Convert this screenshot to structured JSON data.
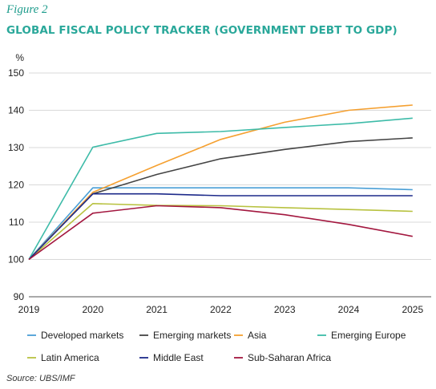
{
  "figure_label": "Figure 2",
  "source": "Source: UBS/IMF",
  "chart_data": {
    "type": "line",
    "title": "GLOBAL FISCAL POLICY TRACKER (GOVERNMENT DEBT TO GDP)",
    "ylabel": "%",
    "xlabel": "",
    "x": [
      "2019",
      "2020",
      "2021",
      "2022",
      "2023",
      "2024",
      "2025"
    ],
    "ylim": [
      90,
      150
    ],
    "yticks": [
      90,
      100,
      110,
      120,
      130,
      140,
      150
    ],
    "grid": true,
    "legend_position": "bottom",
    "series": [
      {
        "name": "Developed markets",
        "color": "#4a9fd6",
        "values": [
          100,
          119.2,
          119.2,
          119.2,
          119.2,
          119.2,
          118.7
        ]
      },
      {
        "name": "Emerging markets",
        "color": "#444444",
        "values": [
          100,
          117.6,
          122.8,
          127,
          129.5,
          131.6,
          132.6
        ]
      },
      {
        "name": "Asia",
        "color": "#f5a030",
        "values": [
          100,
          118,
          125.2,
          132.2,
          136.8,
          140,
          141.4
        ]
      },
      {
        "name": "Emerging Europe",
        "color": "#3dbba8",
        "values": [
          100,
          130.1,
          133.8,
          134.3,
          135.4,
          136.4,
          137.9
        ]
      },
      {
        "name": "Latin America",
        "color": "#b8c240",
        "values": [
          100,
          115,
          114.5,
          114.4,
          113.9,
          113.4,
          112.9
        ]
      },
      {
        "name": "Middle East",
        "color": "#1d2a8a",
        "values": [
          100,
          117.6,
          117.6,
          117.1,
          117.1,
          117.1,
          117.1
        ]
      },
      {
        "name": "Sub-Saharan Africa",
        "color": "#a3173f",
        "values": [
          100,
          112.4,
          114.4,
          113.9,
          112,
          109.4,
          106.2
        ]
      }
    ]
  }
}
